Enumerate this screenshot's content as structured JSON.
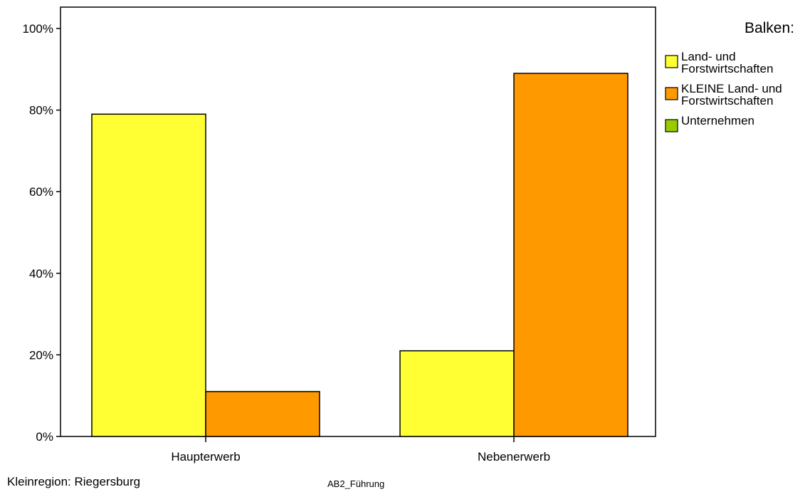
{
  "chart_data": {
    "type": "bar",
    "categories": [
      "Haupterwerb",
      "Nebenerwerb"
    ],
    "series": [
      {
        "name": "Land- und Forstwirtschaften",
        "values": [
          79,
          21
        ],
        "color": "#FFFF33"
      },
      {
        "name": "KLEINE Land- und Forstwirtschaften",
        "values": [
          11,
          89
        ],
        "color": "#FF9900"
      },
      {
        "name": "Unternehmen",
        "values": [
          0,
          0
        ],
        "color": "#99CC00"
      }
    ],
    "ylim": [
      0,
      100
    ],
    "yticks": [
      "0%",
      "20%",
      "40%",
      "60%",
      "80%",
      "100%"
    ],
    "ytick_values": [
      0,
      20,
      40,
      60,
      80,
      100
    ],
    "legend": {
      "title": "Balken:",
      "position": "right",
      "entries": [
        {
          "lines": [
            "Land- und",
            "Forstwirtschaften"
          ],
          "color": "#FFFF33"
        },
        {
          "lines": [
            "KLEINE Land- und",
            "Forstwirtschaften"
          ],
          "color": "#FF9900"
        },
        {
          "lines": [
            "Unternehmen"
          ],
          "color": "#99CC00"
        }
      ]
    },
    "grid": false
  },
  "footer": {
    "left": "Kleinregion: Riegersburg",
    "center": "AB2_Führung"
  }
}
